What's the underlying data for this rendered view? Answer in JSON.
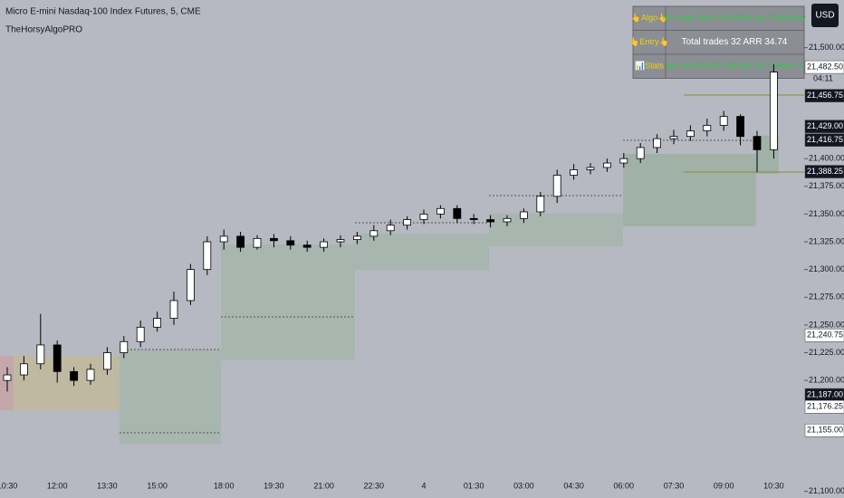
{
  "chart_data": {
    "type": "candlestick",
    "title": "Micro E-mini Nasdaq-100 Index Futures, 5, CME",
    "subtitle": "TheHorsyAlgoPRO",
    "currency": "USD",
    "countdown": "04:11",
    "categories": [
      "10:30",
      null,
      null,
      "12:00",
      null,
      null,
      "13:30",
      null,
      null,
      "15:00",
      null,
      null,
      null,
      "18:00",
      null,
      null,
      "19:30",
      null,
      null,
      "21:00",
      null,
      null,
      "22:30",
      null,
      null,
      "4",
      null,
      null,
      "01:30",
      null,
      null,
      "03:00",
      null,
      null,
      "04:30",
      null,
      null,
      "06:00",
      null,
      null,
      "07:30",
      null,
      null,
      "09:00",
      null,
      null,
      "10:30"
    ],
    "open": [
      21200,
      21205,
      21215,
      21232,
      21208,
      21200,
      21210,
      21225,
      21235,
      21248,
      21256,
      21272,
      21300,
      21325,
      21330,
      21320,
      21328,
      21326,
      21322,
      21320,
      21325,
      21327,
      21330,
      21335,
      21340,
      21345,
      21350,
      21355,
      21346,
      21345,
      21343,
      21346,
      21352,
      21366,
      21385,
      21390,
      21392,
      21396,
      21400,
      21410,
      21418,
      21420,
      21425,
      21430,
      21438,
      21420,
      21408
    ],
    "high": [
      21212,
      21222,
      21260,
      21236,
      21212,
      21215,
      21230,
      21240,
      21254,
      21262,
      21280,
      21305,
      21330,
      21336,
      21334,
      21331,
      21332,
      21330,
      21326,
      21328,
      21331,
      21334,
      21340,
      21345,
      21348,
      21354,
      21358,
      21358,
      21350,
      21349,
      21349,
      21355,
      21370,
      21390,
      21395,
      21396,
      21400,
      21405,
      21414,
      21422,
      21426,
      21430,
      21436,
      21443,
      21440,
      21425,
      21485
    ],
    "low": [
      21190,
      21200,
      21210,
      21198,
      21195,
      21196,
      21205,
      21220,
      21230,
      21244,
      21250,
      21268,
      21295,
      21318,
      21316,
      21318,
      21320,
      21318,
      21316,
      21316,
      21320,
      21323,
      21326,
      21331,
      21336,
      21341,
      21346,
      21342,
      21341,
      21338,
      21339,
      21342,
      21348,
      21360,
      21381,
      21386,
      21388,
      21392,
      21396,
      21405,
      21413,
      21416,
      21420,
      21425,
      21412,
      21388,
      21400
    ],
    "close": [
      21205,
      21215,
      21232,
      21208,
      21200,
      21210,
      21225,
      21235,
      21248,
      21256,
      21272,
      21300,
      21325,
      21330,
      21320,
      21328,
      21326,
      21322,
      21320,
      21325,
      21327,
      21330,
      21335,
      21340,
      21345,
      21350,
      21355,
      21346,
      21345,
      21343,
      21346,
      21352,
      21366,
      21385,
      21390,
      21392,
      21396,
      21400,
      21410,
      21418,
      21420,
      21425,
      21430,
      21438,
      21420,
      21408,
      21478
    ],
    "up_color": "#ffffff",
    "down_color": "#000000",
    "ylim": [
      21094,
      21543
    ],
    "yticks": [
      {
        "value": 21500,
        "label": "21,500.00"
      },
      {
        "value": 21400,
        "label": "21,400.00"
      },
      {
        "value": 21375,
        "label": "21,375.00"
      },
      {
        "value": 21350,
        "label": "21,350.00"
      },
      {
        "value": 21325,
        "label": "21,325.00"
      },
      {
        "value": 21300,
        "label": "21,300.00"
      },
      {
        "value": 21275,
        "label": "21,275.00"
      },
      {
        "value": 21250,
        "label": "21,250.00"
      },
      {
        "value": 21225,
        "label": "21,225.00"
      },
      {
        "value": 21200,
        "label": "21,200.00"
      },
      {
        "value": 21100,
        "label": "21,100.00"
      }
    ],
    "price_marks": [
      {
        "value": 21482.5,
        "label": "21,482.50",
        "style": "light"
      },
      {
        "value": 21456.75,
        "label": "21,456.75",
        "style": "dark"
      },
      {
        "value": 21429,
        "label": "21,429.00",
        "style": "dark"
      },
      {
        "value": 21416.75,
        "label": "21,416.75",
        "style": "dark"
      },
      {
        "value": 21388.25,
        "label": "21,388.25",
        "style": "dark"
      },
      {
        "value": 21240.75,
        "label": "21,240.75",
        "style": "light"
      },
      {
        "value": 21187,
        "label": "21,187.00",
        "style": "dark"
      },
      {
        "value": 21176.25,
        "label": "21,176.25",
        "style": "light"
      },
      {
        "value": 21155,
        "label": "21,155.00",
        "style": "light"
      }
    ],
    "stats_table": [
      [
        "👆Algo👆",
        "HH range 34min 18.50Daily-buy 123Min-buy"
      ],
      [
        "👆Entry👆",
        "Total trades 32 ARR 34.74"
      ],
      [
        "📊Stats",
        "Win rate 93% PF 8.38 Max DD 1 Streak 12"
      ]
    ]
  }
}
